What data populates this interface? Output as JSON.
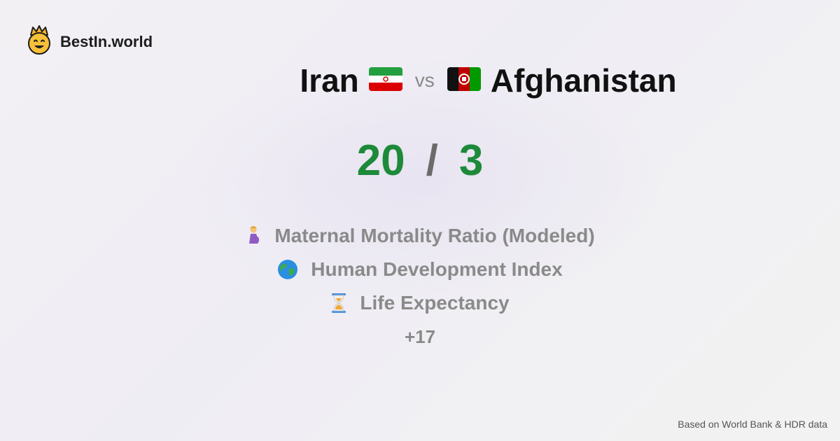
{
  "brand": {
    "name": "BestIn.world",
    "icon": "crown-face-icon"
  },
  "comparison": {
    "country_a": {
      "name": "Iran",
      "flag_icon": "iran-flag-icon"
    },
    "vs_label": "vs",
    "country_b": {
      "name": "Afghanistan",
      "flag_icon": "afghanistan-flag-icon"
    }
  },
  "score": {
    "a": "20",
    "separator": "/",
    "b": "3",
    "color": "#1d8a3a"
  },
  "metrics": [
    {
      "icon": "pregnant-woman-icon",
      "label": "Maternal Mortality Ratio (Modeled)"
    },
    {
      "icon": "globe-icon",
      "label": "Human Development Index"
    },
    {
      "icon": "hourglass-icon",
      "label": "Life Expectancy"
    }
  ],
  "more_label": "+17",
  "footer": {
    "source": "Based on World Bank & HDR data"
  }
}
